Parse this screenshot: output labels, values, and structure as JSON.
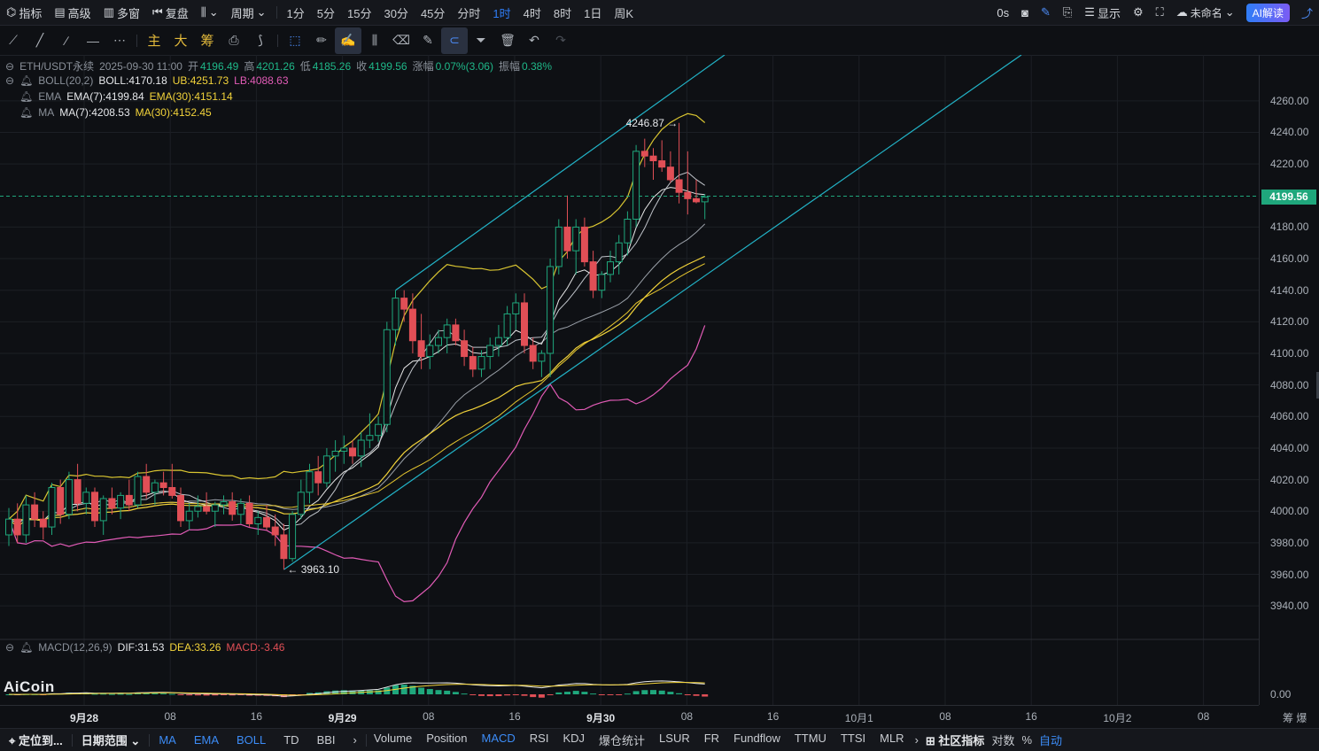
{
  "topbar": {
    "left": [
      "指标",
      "高级",
      "多窗",
      "复盘"
    ],
    "period_label": "周期",
    "intervals": [
      "1分",
      "5分",
      "15分",
      "30分",
      "45分",
      "分时",
      "1时",
      "4时",
      "8时",
      "1日",
      "周K"
    ],
    "active_interval": "1时",
    "right": {
      "latency": "0s",
      "display": "显示",
      "account": "未命名",
      "ai": "AI解读"
    }
  },
  "toolbar2": {
    "text_tools": [
      "主",
      "大",
      "筹"
    ]
  },
  "info": {
    "symbol": "ETH/USDT永续",
    "datetime": "2025-09-30 11:00",
    "open_label": "开",
    "open": "4196.49",
    "high_label": "高",
    "high": "4201.26",
    "low_label": "低",
    "low": "4185.26",
    "close_label": "收",
    "close": "4199.56",
    "change_label": "涨幅",
    "change": "0.07%(3.06)",
    "amp_label": "振幅",
    "amp": "0.38%",
    "boll_name": "BOLL(20,2)",
    "boll": "BOLL:4170.18",
    "ub": "UB:4251.73",
    "lb": "LB:4088.63",
    "ema_name": "EMA",
    "ema7": "EMA(7):4199.84",
    "ema30": "EMA(30):4151.14",
    "ma_name": "MA",
    "ma7": "MA(7):4208.53",
    "ma30": "MA(30):4152.45",
    "macd_name": "MACD(12,26,9)",
    "dif": "DIF:31.53",
    "dea": "DEA:33.26",
    "macd": "MACD:-3.46"
  },
  "price_axis": {
    "labels": [
      "4260.00",
      "4240.00",
      "4220.00",
      "4180.00",
      "4160.00",
      "4140.00",
      "4120.00",
      "4100.00",
      "4080.00",
      "4060.00",
      "4040.00",
      "4020.00",
      "4000.00",
      "3980.00",
      "3960.00",
      "3940.00"
    ],
    "current": "4199.56",
    "macd_zero": "0.00"
  },
  "annotations": {
    "high": "4246.87",
    "low": "3963.10"
  },
  "watermark": "AiCoin",
  "time_axis": {
    "labels": [
      "9月28",
      "08",
      "16",
      "9月29",
      "08",
      "16",
      "9月30",
      "08",
      "16",
      "10月1",
      "08",
      "16",
      "10月2",
      "08"
    ],
    "bold": [
      "9月28",
      "9月29",
      "9月30"
    ],
    "right": "筹 爆"
  },
  "bottombar": {
    "locate": "定位到...",
    "range": "日期范围",
    "main": [
      "MA",
      "EMA",
      "BOLL",
      "TD",
      "BBI"
    ],
    "sub": [
      "Volume",
      "Position",
      "MACD",
      "RSI",
      "KDJ",
      "爆仓统计",
      "LSUR",
      "FR",
      "Fundflow",
      "TTMU",
      "TTSI",
      "MLR"
    ],
    "community": "社区指标",
    "log": "对数",
    "pct": "%",
    "auto": "自动"
  },
  "colors": {
    "up": "#1fa77c",
    "down": "#e14f56",
    "accent": "#2f7df6",
    "yellow": "#f2d33a",
    "pink": "#e15bb6"
  },
  "chart_data": {
    "type": "candlestick",
    "symbol": "ETH/USDT",
    "interval": "1h",
    "ylim": [
      3930,
      4270
    ],
    "candles": [
      [
        3985,
        4002,
        3978,
        3995
      ],
      [
        3995,
        4005,
        3980,
        3985
      ],
      [
        3985,
        4010,
        3980,
        4004
      ],
      [
        4004,
        4012,
        3990,
        3995
      ],
      [
        3995,
        4000,
        3982,
        3990
      ],
      [
        3990,
        4018,
        3985,
        4015
      ],
      [
        4015,
        4020,
        3992,
        3998
      ],
      [
        3998,
        4025,
        3995,
        4020
      ],
      [
        4020,
        4030,
        4000,
        4005
      ],
      [
        4005,
        4015,
        3998,
        4012
      ],
      [
        4012,
        4015,
        3990,
        3994
      ],
      [
        3994,
        4010,
        3985,
        4008
      ],
      [
        4008,
        4015,
        3998,
        4002
      ],
      [
        4002,
        4012,
        3995,
        4010
      ],
      [
        4010,
        4020,
        4000,
        4004
      ],
      [
        4004,
        4025,
        4002,
        4022
      ],
      [
        4022,
        4030,
        4008,
        4012
      ],
      [
        4012,
        4020,
        4004,
        4018
      ],
      [
        4018,
        4025,
        4010,
        4015
      ],
      [
        4015,
        4030,
        4008,
        4010
      ],
      [
        4010,
        4015,
        3990,
        3994
      ],
      [
        3994,
        4005,
        3988,
        4000
      ],
      [
        4000,
        4010,
        3996,
        4003
      ],
      [
        4003,
        4012,
        3998,
        4000
      ],
      [
        4000,
        4006,
        3990,
        4004
      ],
      [
        4004,
        4010,
        3998,
        4006
      ],
      [
        4006,
        4012,
        3994,
        3998
      ],
      [
        3998,
        4008,
        3992,
        4005
      ],
      [
        4005,
        4010,
        3990,
        3992
      ],
      [
        3992,
        4000,
        3985,
        3996
      ],
      [
        3996,
        4004,
        3988,
        3990
      ],
      [
        3990,
        3998,
        3978,
        3985
      ],
      [
        3985,
        3992,
        3963,
        3970
      ],
      [
        3970,
        4000,
        3968,
        3998
      ],
      [
        3998,
        4020,
        3995,
        4012
      ],
      [
        4012,
        4030,
        4005,
        4025
      ],
      [
        4025,
        4035,
        4010,
        4018
      ],
      [
        4018,
        4040,
        4015,
        4035
      ],
      [
        4035,
        4045,
        4025,
        4038
      ],
      [
        4038,
        4048,
        4030,
        4040
      ],
      [
        4040,
        4045,
        4030,
        4035
      ],
      [
        4035,
        4050,
        4028,
        4045
      ],
      [
        4045,
        4062,
        4040,
        4048
      ],
      [
        4048,
        4060,
        4044,
        4055
      ],
      [
        4055,
        4120,
        4050,
        4115
      ],
      [
        4115,
        4140,
        4105,
        4135
      ],
      [
        4135,
        4140,
        4120,
        4128
      ],
      [
        4128,
        4138,
        4100,
        4108
      ],
      [
        4108,
        4125,
        4090,
        4098
      ],
      [
        4098,
        4112,
        4090,
        4105
      ],
      [
        4105,
        4115,
        4100,
        4110
      ],
      [
        4110,
        4122,
        4100,
        4118
      ],
      [
        4118,
        4122,
        4105,
        4108
      ],
      [
        4108,
        4115,
        4092,
        4098
      ],
      [
        4098,
        4104,
        4085,
        4090
      ],
      [
        4090,
        4102,
        4085,
        4098
      ],
      [
        4098,
        4110,
        4090,
        4105
      ],
      [
        4105,
        4118,
        4098,
        4110
      ],
      [
        4110,
        4130,
        4105,
        4125
      ],
      [
        4125,
        4138,
        4115,
        4132
      ],
      [
        4132,
        4138,
        4100,
        4105
      ],
      [
        4105,
        4110,
        4090,
        4095
      ],
      [
        4095,
        4102,
        4085,
        4100
      ],
      [
        4100,
        4160,
        4085,
        4155
      ],
      [
        4155,
        4185,
        4150,
        4180
      ],
      [
        4180,
        4200,
        4160,
        4165
      ],
      [
        4165,
        4185,
        4150,
        4180
      ],
      [
        4180,
        4186,
        4155,
        4158
      ],
      [
        4158,
        4165,
        4135,
        4140
      ],
      [
        4140,
        4152,
        4135,
        4150
      ],
      [
        4150,
        4165,
        4145,
        4158
      ],
      [
        4158,
        4175,
        4150,
        4170
      ],
      [
        4170,
        4190,
        4162,
        4185
      ],
      [
        4185,
        4232,
        4180,
        4228
      ],
      [
        4228,
        4236,
        4218,
        4225
      ],
      [
        4225,
        4230,
        4210,
        4222
      ],
      [
        4222,
        4235,
        4215,
        4218
      ],
      [
        4218,
        4228,
        4208,
        4210
      ],
      [
        4210,
        4246,
        4195,
        4202
      ],
      [
        4202,
        4228,
        4188,
        4198
      ],
      [
        4198,
        4210,
        4195,
        4196
      ],
      [
        4196,
        4201,
        4185,
        4199
      ]
    ]
  }
}
